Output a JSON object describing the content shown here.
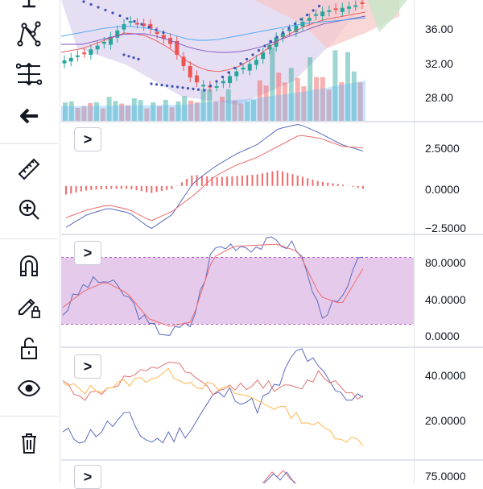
{
  "toolbar": {
    "tools": [
      {
        "id": "crosshair",
        "icon": "crosshair-icon"
      },
      {
        "id": "pattern",
        "icon": "pattern-tool-icon"
      },
      {
        "id": "fib",
        "icon": "fib-retracement-icon"
      },
      {
        "id": "back",
        "icon": "arrow-left-icon"
      },
      {
        "id": "measure",
        "icon": "ruler-icon"
      },
      {
        "id": "zoom",
        "icon": "zoom-in-icon"
      },
      {
        "id": "magnet",
        "icon": "magnet-icon"
      },
      {
        "id": "lockdraw",
        "icon": "lock-drawings-icon"
      },
      {
        "id": "unlock",
        "icon": "unlock-icon"
      },
      {
        "id": "hide",
        "icon": "eye-icon"
      },
      {
        "id": "remove",
        "icon": "trash-icon"
      }
    ]
  },
  "colors": {
    "candle_up": "#26a69a",
    "candle_down": "#ef5350",
    "cloud_red": "#f7c6c6",
    "cloud_green": "#c8e6c9",
    "cloud_purple": "#d1c4e9",
    "dots": "#3f51b5",
    "rsi_band": "#d5a6dd",
    "macd_blue": "#5c6bc0",
    "macd_red": "#ef6c6c"
  },
  "panes": {
    "price": {
      "ticks": [
        "36.00",
        "32.00",
        "28.00"
      ]
    },
    "macd": {
      "ticks": [
        "2.5000",
        "0.0000",
        "−2.5000"
      ],
      "collapse_label": ">"
    },
    "rsi": {
      "ticks": [
        "80.0000",
        "40.0000",
        "0.0000"
      ],
      "collapse_label": ">"
    },
    "dmi": {
      "ticks": [
        "40.0000",
        "20.0000"
      ],
      "collapse_label": ">"
    },
    "pane5": {
      "ticks": [
        "75.0000"
      ],
      "collapse_label": ">"
    }
  },
  "chart_data": [
    {
      "type": "line",
      "title": "",
      "series": [
        {
          "values": [
            33.5,
            34.5,
            36.0,
            38.5,
            37.5,
            35.5,
            31.0,
            30.0,
            32.0,
            33.5,
            36.5,
            38.0,
            39.5,
            40.0,
            40.5
          ]
        }
      ],
      "ylim": [
        26,
        41
      ]
    },
    {
      "type": "line",
      "series": [
        {
          "values": [
            -2.6,
            -1.8,
            -1.4,
            -1.7,
            -2.7,
            -1.8,
            0.2,
            1.2,
            2.0,
            2.6,
            3.6,
            3.9,
            3.3,
            2.6,
            2.2
          ]
        },
        {
          "values": [
            -2.0,
            -1.5,
            -1.2,
            -1.5,
            -2.2,
            -1.6,
            -0.6,
            0.6,
            1.3,
            1.8,
            2.5,
            3.2,
            3.0,
            2.5,
            2.4
          ]
        }
      ],
      "ylim": [
        -3,
        4
      ]
    },
    {
      "type": "line",
      "series": [
        {
          "values": [
            30,
            55,
            60,
            45,
            18,
            12,
            20,
            88,
            92,
            90,
            95,
            88,
            30,
            40,
            85
          ]
        },
        {
          "values": [
            35,
            50,
            58,
            48,
            25,
            18,
            22,
            80,
            90,
            91,
            92,
            85,
            45,
            38,
            70
          ]
        }
      ],
      "ylim": [
        0,
        100
      ],
      "band": [
        20,
        80
      ]
    },
    {
      "type": "line",
      "series": [
        {
          "values": [
            15,
            14,
            18,
            22,
            12,
            14,
            18,
            30,
            32,
            26,
            34,
            50,
            40,
            30,
            32
          ]
        },
        {
          "values": [
            36,
            30,
            33,
            38,
            40,
            45,
            38,
            32,
            34,
            36,
            34,
            33,
            40,
            34,
            30
          ]
        },
        {
          "values": [
            35,
            33,
            34,
            36,
            38,
            40,
            36,
            34,
            32,
            29,
            26,
            22,
            18,
            14,
            12
          ]
        }
      ],
      "ylim": [
        5,
        50
      ]
    }
  ]
}
